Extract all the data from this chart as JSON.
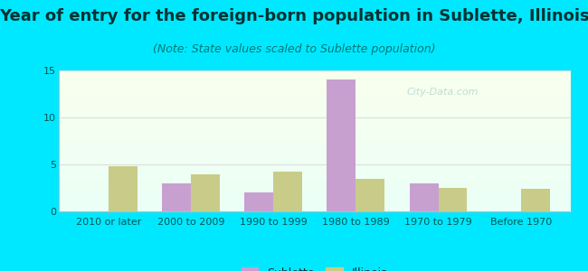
{
  "title": "Year of entry for the foreign-born population in Sublette, Illinois",
  "subtitle": "(Note: State values scaled to Sublette population)",
  "categories": [
    "2010 or later",
    "2000 to 2009",
    "1990 to 1999",
    "1980 to 1989",
    "1970 to 1979",
    "Before 1970"
  ],
  "sublette_values": [
    0,
    3,
    2,
    14,
    3,
    0
  ],
  "illinois_values": [
    4.8,
    3.9,
    4.2,
    3.5,
    2.5,
    2.4
  ],
  "sublette_color": "#c8a0d0",
  "illinois_color": "#c8cc88",
  "background_outer": "#00e8ff",
  "ylim": [
    0,
    15
  ],
  "yticks": [
    0,
    5,
    10,
    15
  ],
  "bar_width": 0.35,
  "title_fontsize": 13,
  "subtitle_fontsize": 9,
  "tick_fontsize": 8,
  "legend_fontsize": 9
}
